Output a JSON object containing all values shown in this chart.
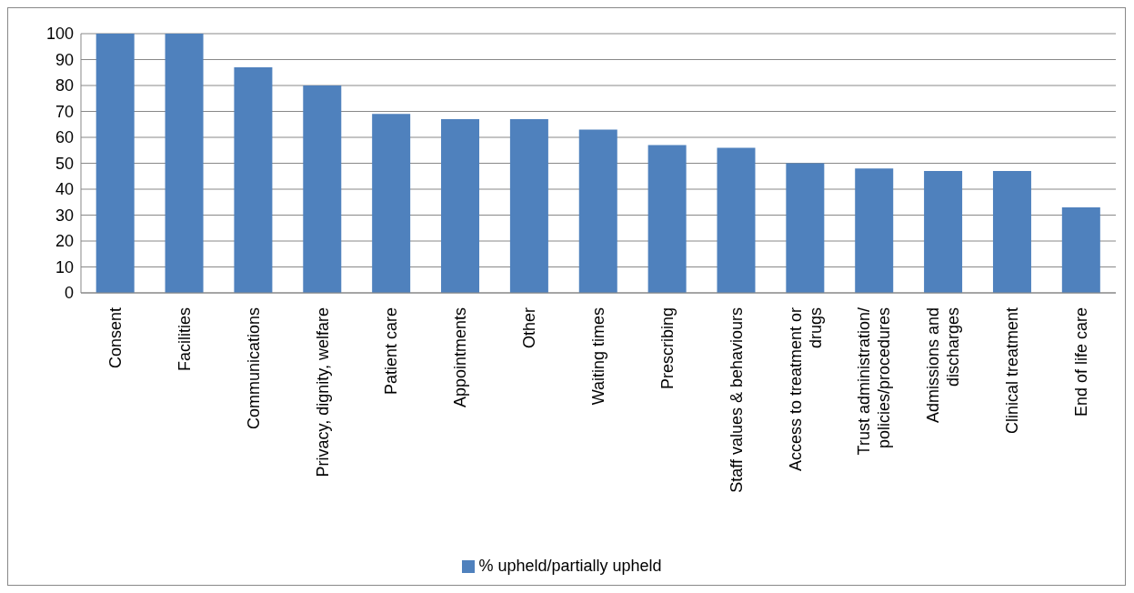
{
  "chart_data": {
    "type": "bar",
    "categories": [
      "Consent",
      "Facilities",
      "Communications",
      "Privacy, dignity, welfare",
      "Patient care",
      "Appointments",
      "Other",
      "Waiting times",
      "Prescribing",
      "Staff values & behaviours",
      "Access to treatment or drugs",
      "Trust administration/policies/procedures",
      "Admissions and discharges",
      "Clinical treatment",
      "End of life care"
    ],
    "series": [
      {
        "name": "% upheld/partially upheld",
        "color": "#4f81bd",
        "values": [
          100,
          100,
          87,
          80,
          69,
          67,
          67,
          63,
          57,
          56,
          50,
          48,
          47,
          47,
          33
        ]
      }
    ],
    "ylim": [
      0,
      100
    ],
    "yticks": [
      0,
      10,
      20,
      30,
      40,
      50,
      60,
      70,
      80,
      90,
      100
    ],
    "grid": "y",
    "legend": "bottom"
  }
}
